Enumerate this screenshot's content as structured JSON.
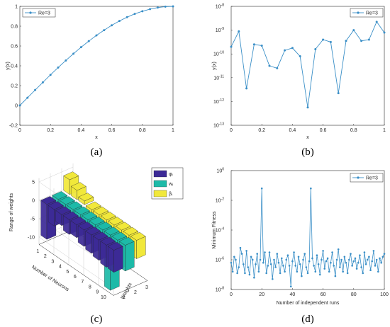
{
  "captions": {
    "a": "(a)",
    "b": "(b)",
    "c": "(c)",
    "d": "(d)"
  },
  "colors": {
    "line": "#3a8fc7",
    "axis": "#262626",
    "grid": "#cfcfcf",
    "bar_phi": "#3c2a96",
    "bar_w": "#1dbaa8",
    "bar_beta": "#f1e83a"
  },
  "chart_data": [
    {
      "id": "a",
      "type": "line",
      "xlabel": "x",
      "ylabel": "y(x)",
      "xlim": [
        0,
        1
      ],
      "ylim": [
        -0.2,
        1
      ],
      "xticks": [
        "0",
        "0.2",
        "0.4",
        "0.6",
        "0.8",
        "1"
      ],
      "yticks": [
        "-0.2",
        "0",
        "0.2",
        "0.4",
        "0.6",
        "0.8",
        "1"
      ],
      "legend": "top-left",
      "series": [
        {
          "name": "Re=3",
          "x": [
            0,
            0.05,
            0.1,
            0.15,
            0.2,
            0.25,
            0.3,
            0.35,
            0.4,
            0.45,
            0.5,
            0.55,
            0.6,
            0.65,
            0.7,
            0.75,
            0.8,
            0.85,
            0.9,
            0.95,
            1.0
          ],
          "y": [
            0,
            0.078,
            0.156,
            0.233,
            0.309,
            0.383,
            0.454,
            0.522,
            0.588,
            0.649,
            0.707,
            0.76,
            0.809,
            0.853,
            0.891,
            0.924,
            0.951,
            0.972,
            0.988,
            0.997,
            1.0
          ]
        }
      ]
    },
    {
      "id": "b",
      "type": "line",
      "yscale": "log",
      "xlabel": "x",
      "ylabel": "y(x)",
      "xlim": [
        0,
        1
      ],
      "ylim_exp": [
        -13,
        -8
      ],
      "xticks": [
        "0",
        "0.2",
        "0.4",
        "0.6",
        "0.8",
        "1"
      ],
      "ytick_base": "10",
      "ytick_exps": [
        "-8",
        "-9",
        "-10",
        "-11",
        "-12",
        "-13"
      ],
      "legend": "top-right",
      "series": [
        {
          "name": "Re=3",
          "x": [
            0,
            0.05,
            0.1,
            0.15,
            0.2,
            0.25,
            0.3,
            0.35,
            0.4,
            0.45,
            0.5,
            0.55,
            0.6,
            0.65,
            0.7,
            0.75,
            0.8,
            0.85,
            0.9,
            0.95,
            1.0
          ],
          "log10_y": [
            -9.7,
            -9.05,
            -11.45,
            -9.6,
            -9.65,
            -10.5,
            -10.6,
            -9.85,
            -9.75,
            -10.1,
            -12.25,
            -9.8,
            -9.4,
            -9.5,
            -11.65,
            -9.45,
            -9.0,
            -9.45,
            -9.4,
            -8.65,
            -9.1
          ]
        }
      ]
    },
    {
      "id": "c",
      "type": "bar3d",
      "zlabel": "Range of weights",
      "xlabel": "Number of Neurons",
      "ylabel": "Weights",
      "zticks": [
        "5",
        "0",
        "-5",
        "-10"
      ],
      "xticks": [
        "1",
        "2",
        "3",
        "4",
        "5",
        "6",
        "7",
        "8",
        "9",
        "10"
      ],
      "yticks": [
        "1",
        "2",
        "3"
      ],
      "legend": [
        {
          "label": "φᵢ"
        },
        {
          "label": "wᵢ"
        },
        {
          "label": "βᵢ"
        }
      ],
      "series": [
        {
          "name": "φᵢ",
          "values": [
            -9.5,
            -4.5,
            -3,
            -4,
            -3.5,
            -4.5,
            -5,
            -5.5,
            -6,
            -6
          ]
        },
        {
          "name": "wᵢ",
          "values": [
            -3,
            -2,
            -1.5,
            -3,
            -4,
            -5,
            -6,
            -15,
            -8,
            -7
          ]
        },
        {
          "name": "βᵢ",
          "values": [
            4,
            2.5,
            1,
            -1,
            -2,
            -3,
            -4,
            -4,
            -5,
            -5
          ]
        }
      ]
    },
    {
      "id": "d",
      "type": "line",
      "yscale": "log",
      "xlabel": "Number of independent runs",
      "ylabel": "Minimum Fitness",
      "xlim": [
        0,
        100
      ],
      "ylim_exp": [
        -8,
        0
      ],
      "xticks": [
        "0",
        "20",
        "40",
        "60",
        "80",
        "100"
      ],
      "ytick_base": "10",
      "ytick_exps": [
        "0",
        "-2",
        "-4",
        "-6",
        "-8"
      ],
      "legend": "top-right",
      "series": [
        {
          "name": "Re=3",
          "log10_y": [
            -6.2,
            -6.8,
            -5.8,
            -6.0,
            -6.9,
            -6.5,
            -5.2,
            -5.6,
            -6.3,
            -6.9,
            -5.4,
            -6.5,
            -7.0,
            -5.8,
            -6.0,
            -7.2,
            -6.3,
            -5.6,
            -6.8,
            -6.0,
            -1.2,
            -6.2,
            -5.5,
            -6.9,
            -6.4,
            -5.5,
            -6.3,
            -7.3,
            -6.0,
            -6.5,
            -5.6,
            -6.2,
            -6.9,
            -5.9,
            -6.4,
            -6.8,
            -6.0,
            -5.7,
            -6.4,
            -7.8,
            -6.1,
            -5.5,
            -6.4,
            -6.8,
            -5.8,
            -6.3,
            -7.1,
            -6.0,
            -5.6,
            -6.5,
            -6.9,
            -6.1,
            -1.2,
            -5.9,
            -6.4,
            -6.8,
            -5.7,
            -6.3,
            -7.0,
            -6.0,
            -5.4,
            -6.6,
            -6.1,
            -5.9,
            -6.8,
            -6.2,
            -5.5,
            -6.4,
            -7.1,
            -6.0,
            -5.3,
            -6.5,
            -6.0,
            -6.8,
            -5.8,
            -6.2,
            -6.9,
            -6.0,
            -5.6,
            -6.4,
            -6.1,
            -5.9,
            -6.6,
            -6.2,
            -5.7,
            -6.5,
            -6.9,
            -5.5,
            -6.3,
            -6.0,
            -5.8,
            -6.7,
            -6.1,
            -5.4,
            -6.4,
            -6.0,
            -6.8,
            -5.9,
            -6.2,
            -5.8,
            -5.6
          ]
        }
      ]
    }
  ]
}
